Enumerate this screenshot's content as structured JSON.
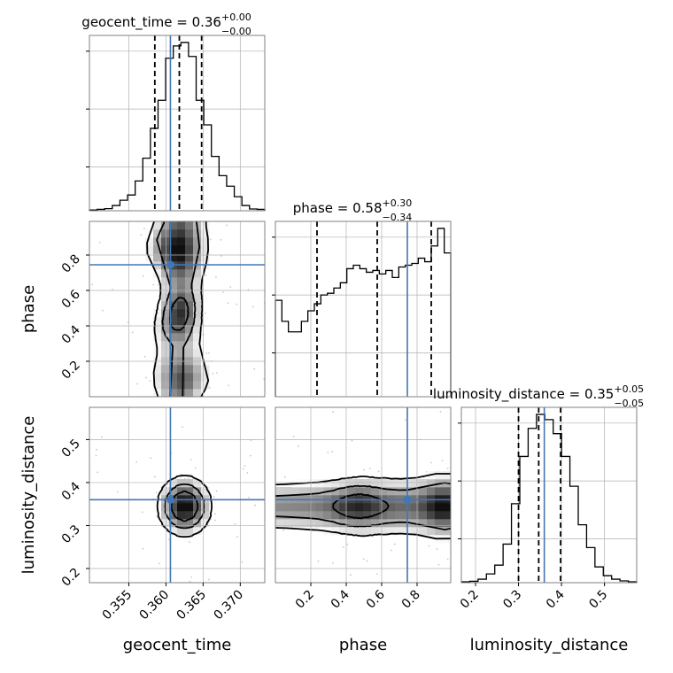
{
  "chart_data": {
    "type": "corner",
    "parameters": [
      {
        "name": "geocent_time",
        "axis_label": "geocent_time",
        "title_value": "0.36",
        "title_plus": "+0.00",
        "title_minus": "−0.00",
        "range": [
          0.3497,
          0.3733
        ],
        "ticks": [
          0.355,
          0.36,
          0.365,
          0.37
        ],
        "tick_labels": [
          "0.355",
          "0.360",
          "0.365",
          "0.370"
        ],
        "truth": 0.3606,
        "quantiles": [
          0.3585,
          0.3618,
          0.3648
        ],
        "hist": [
          0.004,
          0.008,
          0.012,
          0.03,
          0.06,
          0.09,
          0.17,
          0.3,
          0.47,
          0.63,
          0.87,
          0.94,
          0.96,
          0.88,
          0.63,
          0.49,
          0.31,
          0.2,
          0.14,
          0.08,
          0.03,
          0.01,
          0.008
        ]
      },
      {
        "name": "phase",
        "axis_label": "phase",
        "title_value": "0.58",
        "title_plus": "+0.30",
        "title_minus": "−0.34",
        "range": [
          0.0,
          0.99
        ],
        "ticks": [
          0.2,
          0.4,
          0.6,
          0.8
        ],
        "tick_labels": [
          "0.2",
          "0.4",
          "0.6",
          "0.8"
        ],
        "truth": 0.745,
        "quantiles": [
          0.235,
          0.575,
          0.88
        ],
        "hist": [
          0.55,
          0.43,
          0.37,
          0.37,
          0.43,
          0.49,
          0.53,
          0.58,
          0.59,
          0.62,
          0.65,
          0.73,
          0.75,
          0.73,
          0.71,
          0.72,
          0.7,
          0.72,
          0.68,
          0.74,
          0.75,
          0.76,
          0.79,
          0.77,
          0.86,
          0.96,
          0.82
        ]
      },
      {
        "name": "luminosity_distance",
        "axis_label": "luminosity_distance",
        "title_value": "0.35",
        "title_plus": "+0.05",
        "title_minus": "−0.05",
        "range": [
          0.167,
          0.575
        ],
        "ticks": [
          0.2,
          0.3,
          0.4,
          0.5
        ],
        "tick_labels": [
          "0.2",
          "0.3",
          "0.4",
          "0.5"
        ],
        "truth": 0.36,
        "quantiles": [
          0.3,
          0.347,
          0.398
        ],
        "hist": [
          0.005,
          0.008,
          0.02,
          0.05,
          0.1,
          0.22,
          0.45,
          0.72,
          0.88,
          0.96,
          0.93,
          0.85,
          0.72,
          0.55,
          0.33,
          0.2,
          0.09,
          0.04,
          0.02,
          0.01,
          0.005
        ]
      }
    ],
    "pairs": [
      {
        "x_param": "geocent_time",
        "y_param": "phase",
        "contour_shape": "vertical-band",
        "peak": [
          0.3618,
          0.93
        ],
        "truth": [
          0.3606,
          0.745
        ]
      },
      {
        "x_param": "geocent_time",
        "y_param": "luminosity_distance",
        "contour_shape": "ellipse",
        "peak": [
          0.3625,
          0.345
        ],
        "truth": [
          0.3606,
          0.36
        ]
      },
      {
        "x_param": "phase",
        "y_param": "luminosity_distance",
        "contour_shape": "horizontal-band",
        "peak": [
          0.47,
          0.345
        ],
        "truth": [
          0.745,
          0.36
        ]
      }
    ],
    "grid": true,
    "colors": {
      "truth": "#4277b5",
      "hist": "#000000",
      "grid": "#b0b0b0",
      "density": "#000000"
    }
  }
}
